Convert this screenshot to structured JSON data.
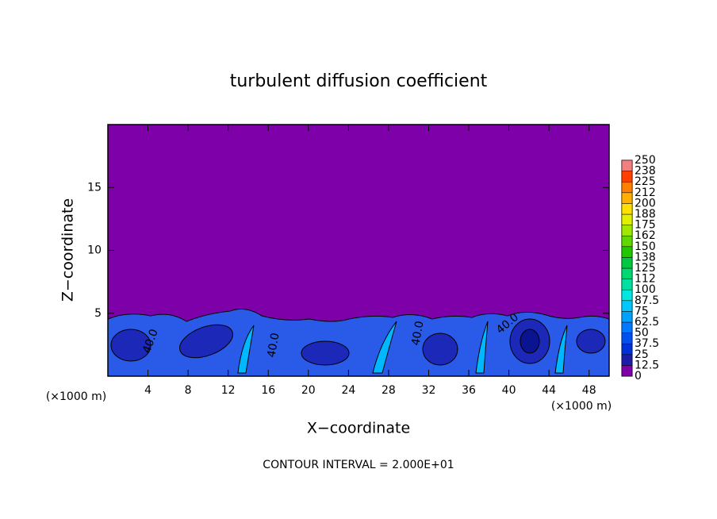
{
  "chart_data": {
    "type": "contour",
    "title": "turbulent diffusion coefficient",
    "x_label": "X−coordinate",
    "y_label": "Z−coordinate",
    "x_unit": "(×1000 m)",
    "y_unit": "(×1000 m)",
    "footer": "CONTOUR INTERVAL = 2.000E+01",
    "xlim": [
      0,
      50
    ],
    "ylim": [
      0,
      20
    ],
    "xticks": [
      4,
      8,
      12,
      16,
      20,
      24,
      28,
      32,
      36,
      40,
      44,
      48
    ],
    "yticks": [
      5,
      10,
      15
    ],
    "contour_labels": [
      "40.0",
      "40.0",
      "40.0",
      "40.0"
    ],
    "colorbar": {
      "levels": [
        0,
        12.5,
        25,
        37.5,
        50,
        62.5,
        75,
        87.5,
        100,
        112,
        125,
        138,
        150,
        162,
        175,
        188,
        200,
        212,
        225,
        238,
        250
      ],
      "colors": [
        "#7d00a8",
        "#1c1ca8",
        "#0030d8",
        "#0050f0",
        "#0078ff",
        "#00a0ff",
        "#00c8ff",
        "#00e8e0",
        "#00e0a0",
        "#00d870",
        "#00c840",
        "#20c800",
        "#60d800",
        "#a0e800",
        "#e0f000",
        "#ffe000",
        "#ffb000",
        "#ff8000",
        "#ff4000",
        "#ff1818",
        "#f08080"
      ]
    }
  }
}
